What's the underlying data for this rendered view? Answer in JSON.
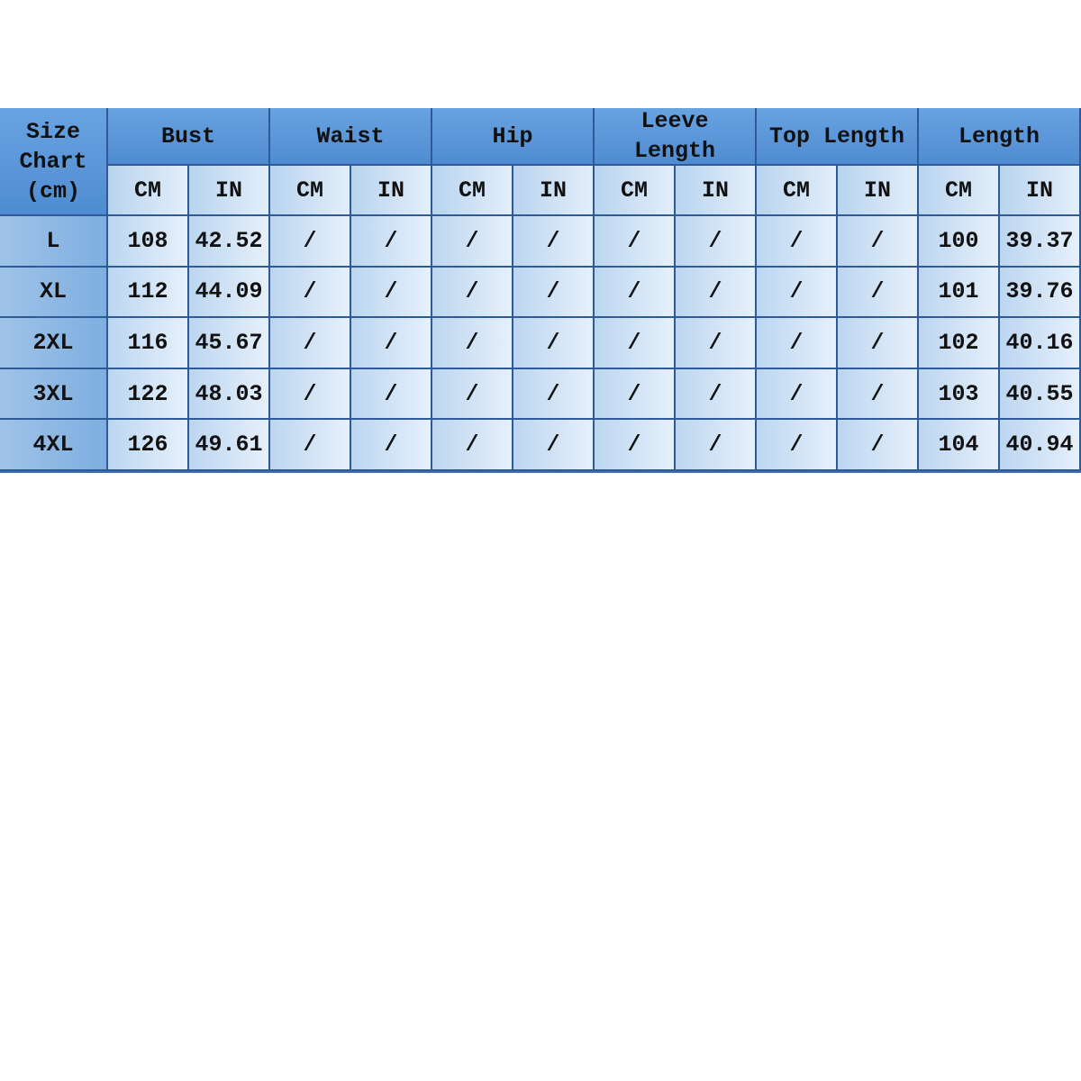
{
  "table": {
    "corner": "Size\nChart\n(cm)",
    "groups": [
      "Bust",
      "Waist",
      "Hip",
      "Leeve\nLength",
      "Top Length",
      "Length"
    ],
    "units": [
      "CM",
      "IN",
      "CM",
      "IN",
      "CM",
      "IN",
      "CM",
      "IN",
      "CM",
      "IN",
      "CM",
      "IN"
    ],
    "rows": [
      [
        "L",
        "108",
        "42.52",
        "/",
        "/",
        "/",
        "/",
        "/",
        "/",
        "/",
        "/",
        "100",
        "39.37"
      ],
      [
        "XL",
        "112",
        "44.09",
        "/",
        "/",
        "/",
        "/",
        "/",
        "/",
        "/",
        "/",
        "101",
        "39.76"
      ],
      [
        "2XL",
        "116",
        "45.67",
        "/",
        "/",
        "/",
        "/",
        "/",
        "/",
        "/",
        "/",
        "102",
        "40.16"
      ],
      [
        "3XL",
        "122",
        "48.03",
        "/",
        "/",
        "/",
        "/",
        "/",
        "/",
        "/",
        "/",
        "103",
        "40.55"
      ],
      [
        "4XL",
        "126",
        "49.61",
        "/",
        "/",
        "/",
        "/",
        "/",
        "/",
        "/",
        "/",
        "104",
        "40.94"
      ]
    ]
  }
}
